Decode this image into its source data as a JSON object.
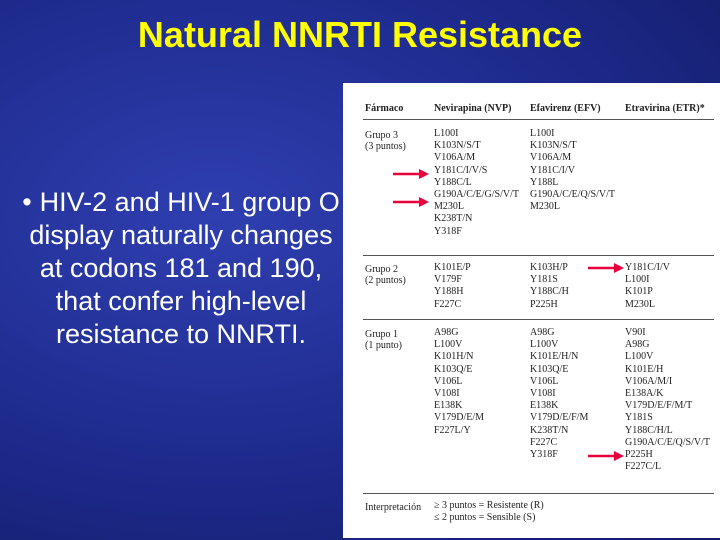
{
  "slide": {
    "title": "Natural NNRTI Resistance",
    "bullet": "HIV-2 and HIV-1 group O display naturally changes at codons 181 and 190, that confer high-level resistance to NNRTI."
  },
  "table": {
    "headers": {
      "farmaco": "Fármaco",
      "nvp": "Nevirapina (NVP)",
      "efv": "Efavirenz (EFV)",
      "etr": "Etravirina (ETR)*"
    },
    "groups": [
      {
        "label_line1": "Grupo 3",
        "label_line2": "(3 puntos)",
        "nvp": [
          "L100I",
          "K103N/S/T",
          "V106A/M",
          "Y181C/I/V/S",
          "Y188C/L",
          "G190A/C/E/G/S/V/T",
          "M230L",
          "K238T/N",
          "Y318F"
        ],
        "efv": [
          "L100I",
          "K103N/S/T",
          "V106A/M",
          "Y181C/I/V",
          "Y188L",
          "G190A/C/E/Q/S/V/T",
          "M230L"
        ],
        "etr": []
      },
      {
        "label_line1": "Grupo 2",
        "label_line2": "(2 puntos)",
        "nvp": [
          "K101E/P",
          "V179F",
          "Y188H",
          "F227C"
        ],
        "efv": [
          "K103H/P",
          "Y181S",
          "Y188C/H",
          "P225H"
        ],
        "etr": [
          "Y181C/I/V",
          "L100I",
          "K101P",
          "M230L"
        ]
      },
      {
        "label_line1": "Grupo 1",
        "label_line2": "(1 punto)",
        "nvp": [
          "A98G",
          "L100V",
          "K101H/N",
          "K103Q/E",
          "V106L",
          "V108I",
          "E138K",
          "V179D/E/M",
          "F227L/Y"
        ],
        "efv": [
          "A98G",
          "L100V",
          "K101E/H/N",
          "K103Q/E",
          "V106L",
          "V108I",
          "E138K",
          "V179D/E/F/M",
          "K238T/N",
          "F227C",
          "Y318F"
        ],
        "etr": [
          "V90I",
          "A98G",
          "L100V",
          "K101E/H",
          "V106A/M/I",
          "E138A/K",
          "V179D/E/F/M/T",
          "Y181S",
          "Y188C/H/L",
          "G190A/C/E/Q/S/V/T",
          "P225H",
          "F227C/L"
        ]
      }
    ],
    "interpretation": {
      "label": "Interpretación",
      "line1": "≥ 3 puntos = Resistente (R)",
      "line2": "≤ 2 puntos = Sensible (S)"
    }
  },
  "colors": {
    "arrow": "#e8003c",
    "title": "#ffff00"
  }
}
